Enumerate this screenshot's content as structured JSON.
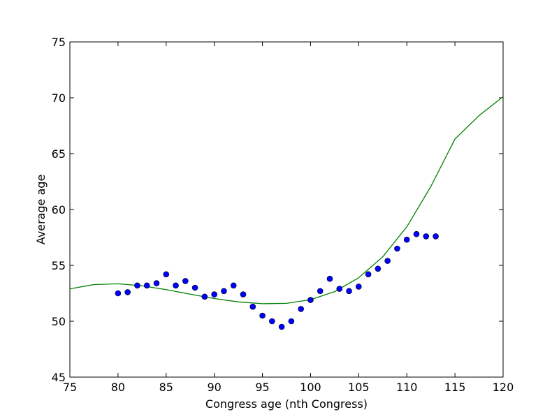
{
  "chart_data": {
    "type": "scatter",
    "title": "",
    "xlabel": "Congress age (nth Congress)",
    "ylabel": "Average age",
    "xlim": [
      75,
      120
    ],
    "ylim": [
      45,
      75
    ],
    "xticks": [
      75,
      80,
      85,
      90,
      95,
      100,
      105,
      110,
      115,
      120
    ],
    "yticks": [
      45,
      50,
      55,
      60,
      65,
      70,
      75
    ],
    "grid": false,
    "legend": "none",
    "series": [
      {
        "kind": "points",
        "color": "#0000ff",
        "edge_color": "#000000",
        "x": [
          80,
          81,
          82,
          83,
          84,
          85,
          86,
          87,
          88,
          89,
          90,
          91,
          92,
          93,
          94,
          95,
          96,
          97,
          98,
          99,
          100,
          101,
          102,
          103,
          104,
          105,
          106,
          107,
          108,
          109,
          110,
          111,
          112,
          113
        ],
        "y": [
          52.5,
          52.6,
          53.2,
          53.2,
          53.4,
          54.2,
          53.2,
          53.6,
          53.0,
          52.2,
          52.4,
          52.7,
          53.2,
          52.4,
          51.3,
          50.5,
          50.0,
          49.5,
          50.0,
          51.1,
          51.9,
          52.7,
          53.8,
          52.9,
          52.7,
          53.1,
          54.2,
          54.7,
          55.4,
          56.5,
          57.3,
          57.8,
          57.6,
          57.6
        ]
      },
      {
        "kind": "fit-line",
        "color": "#008000",
        "x": [
          75.0,
          77.5,
          80.0,
          82.5,
          85.0,
          87.5,
          90.0,
          92.5,
          95.0,
          97.5,
          100.0,
          102.5,
          105.0,
          107.5,
          110.0,
          112.5,
          115.0,
          117.5,
          120.0
        ],
        "y": [
          52.9,
          53.28,
          53.35,
          53.17,
          52.83,
          52.42,
          52.03,
          51.73,
          51.57,
          51.6,
          51.93,
          52.65,
          53.89,
          55.77,
          58.45,
          62.07,
          66.31,
          68.4,
          70.1
        ]
      }
    ]
  }
}
